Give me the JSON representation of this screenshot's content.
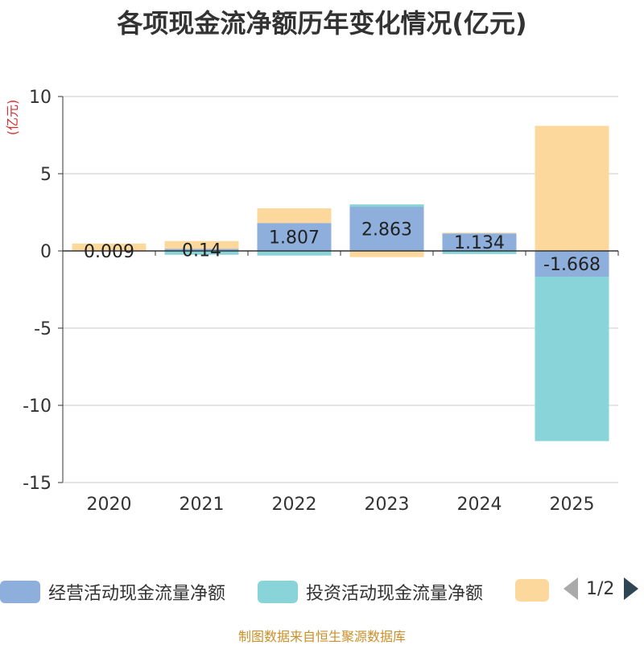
{
  "chart_data": {
    "type": "bar",
    "stacked": true,
    "title": "各项现金流净额历年变化情况(亿元)",
    "ylabel": "(亿元)",
    "xlabel": "",
    "categories": [
      "2020",
      "2021",
      "2022",
      "2023",
      "2024",
      "2025"
    ],
    "ylim": [
      -15,
      10
    ],
    "yticks": [
      10,
      5,
      0,
      -5,
      -10,
      -15
    ],
    "ytick_labels": [
      "10",
      "5",
      "0",
      "-5",
      "-10",
      "-15"
    ],
    "series": [
      {
        "name": "经营活动现金流量净额",
        "color": "#8eaedb",
        "values": [
          0.009,
          0.14,
          1.807,
          2.863,
          1.134,
          -1.668
        ],
        "labels": [
          "0.009",
          "0.14",
          "1.807",
          "2.863",
          "1.134",
          "-1.668"
        ]
      },
      {
        "name": "投资活动现金流量净额",
        "color": "#88d4d8",
        "values": [
          0.02,
          -0.25,
          -0.3,
          0.15,
          -0.2,
          -10.65
        ]
      },
      {
        "name": "",
        "color": "#fdd89c",
        "values": [
          0.45,
          0.5,
          0.95,
          -0.4,
          0.05,
          8.1
        ]
      }
    ],
    "legend_position": "bottom",
    "grid": true
  },
  "legend": {
    "items": [
      {
        "label": "经营活动现金流量净额",
        "color": "#8eaedb"
      },
      {
        "label": "投资活动现金流量净额",
        "color": "#88d4d8"
      },
      {
        "label": "",
        "color": "#fdd89c"
      }
    ],
    "page": "1/2"
  },
  "source": "制图数据来自恒生聚源数据库"
}
